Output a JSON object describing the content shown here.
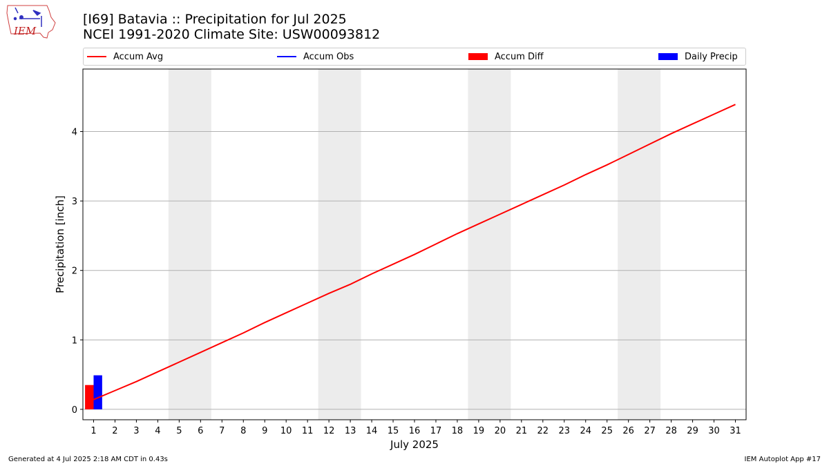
{
  "header": {
    "title_line1": "[I69] Batavia :: Precipitation for Jul 2025",
    "title_line2": "NCEI 1991-2020 Climate Site: USW00093812",
    "logo_text": "IEM"
  },
  "legend": [
    {
      "label": "Accum Avg",
      "kind": "line",
      "color": "#ff0000"
    },
    {
      "label": "Accum Obs",
      "kind": "line",
      "color": "#0000ff"
    },
    {
      "label": "Accum Diff",
      "kind": "patch",
      "color": "#ff0000"
    },
    {
      "label": "Daily Precip",
      "kind": "patch",
      "color": "#0000ff"
    }
  ],
  "footer": {
    "generated": "Generated at 4 Jul 2025 2:18 AM CDT in 0.43s",
    "app": "IEM Autoplot App #17"
  },
  "colors": {
    "avg": "#ff0000",
    "obs": "#0000ff",
    "diff": "#ff0000",
    "daily": "#0000ff",
    "weekend": "#ececec",
    "grid": "#b0b0b0"
  },
  "chart_data": {
    "type": "line",
    "title": "[I69] Batavia :: Precipitation for Jul 2025",
    "xlabel": "July 2025",
    "ylabel": "Precipitation [inch]",
    "x": [
      1,
      2,
      3,
      4,
      5,
      6,
      7,
      8,
      9,
      10,
      11,
      12,
      13,
      14,
      15,
      16,
      17,
      18,
      19,
      20,
      21,
      22,
      23,
      24,
      25,
      26,
      27,
      28,
      29,
      30,
      31
    ],
    "xlim": [
      0.5,
      31.5
    ],
    "ylim": [
      -0.15,
      4.9
    ],
    "yticks": [
      0,
      1,
      2,
      3,
      4
    ],
    "grid": "y",
    "legend_position": "top",
    "weekend_bands": [
      [
        4.5,
        6.5
      ],
      [
        11.5,
        13.5
      ],
      [
        18.5,
        20.5
      ],
      [
        25.5,
        27.5
      ]
    ],
    "series": [
      {
        "name": "Accum Avg",
        "type": "line",
        "values": [
          0.14,
          0.27,
          0.4,
          0.54,
          0.68,
          0.82,
          0.96,
          1.1,
          1.25,
          1.39,
          1.53,
          1.67,
          1.8,
          1.95,
          2.09,
          2.23,
          2.38,
          2.53,
          2.67,
          2.81,
          2.95,
          3.09,
          3.23,
          3.38,
          3.52,
          3.67,
          3.82,
          3.97,
          4.11,
          4.25,
          4.39
        ]
      },
      {
        "name": "Accum Diff",
        "type": "bar",
        "x": [
          1
        ],
        "values": [
          0.35
        ]
      },
      {
        "name": "Daily Precip",
        "type": "bar",
        "x": [
          1
        ],
        "values": [
          0.49
        ]
      }
    ]
  }
}
